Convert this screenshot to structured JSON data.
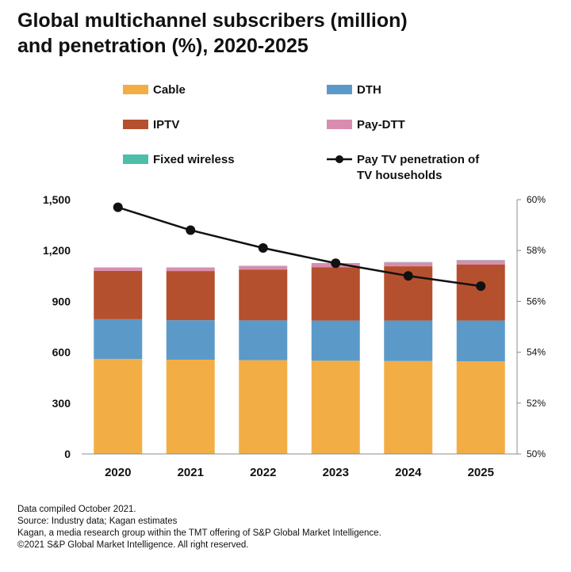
{
  "title_lines": [
    "Global multichannel subscribers (million)",
    "and penetration (%), 2020-2025"
  ],
  "footer": {
    "line1": "Data compiled October 2021.",
    "line2": "Source: Industry data; Kagan estimates",
    "line3": "Kagan, a media research group within the TMT offering of S&P Global Market Intelligence.",
    "line4": "©2021 S&P Global Market Intelligence. All right reserved."
  },
  "chart_data": {
    "type": "bar",
    "stacked": true,
    "title": "Global multichannel subscribers (million) and penetration (%), 2020-2025",
    "categories": [
      "2020",
      "2021",
      "2022",
      "2023",
      "2024",
      "2025"
    ],
    "ylim": [
      0,
      1500
    ],
    "yticks": [
      0,
      300,
      600,
      900,
      1200,
      1500
    ],
    "ytick_labels": [
      "0",
      "300",
      "600",
      "900",
      "1,200",
      "1,500"
    ],
    "y2lim": [
      50,
      60
    ],
    "y2ticks": [
      50,
      52,
      54,
      56,
      58,
      60
    ],
    "y2tick_labels": [
      "50%",
      "52%",
      "54%",
      "56%",
      "58%",
      "60%"
    ],
    "series": [
      {
        "name": "Cable",
        "color": "#F2AE45",
        "values": [
          560,
          556,
          553,
          550,
          548,
          546
        ]
      },
      {
        "name": "DTH",
        "color": "#5B9AC8",
        "values": [
          235,
          233,
          235,
          237,
          239,
          241
        ]
      },
      {
        "name": "IPTV",
        "color": "#B5502F",
        "values": [
          285,
          290,
          300,
          315,
          320,
          330
        ]
      },
      {
        "name": "Pay-DTT",
        "color": "#D98DAE",
        "values": [
          18,
          19,
          20,
          22,
          23,
          25
        ]
      },
      {
        "name": "Fixed wireless",
        "color": "#4DBFA8",
        "values": [
          2,
          2,
          2,
          2,
          2,
          2
        ]
      }
    ],
    "line_series": {
      "name": "Pay TV penetration of TV households",
      "axis": "right",
      "color": "#111111",
      "values": [
        59.7,
        58.8,
        58.1,
        57.5,
        57.0,
        56.6
      ]
    },
    "legend": [
      {
        "label": "Cable",
        "kind": "box",
        "color": "#F2AE45"
      },
      {
        "label": "DTH",
        "kind": "box",
        "color": "#5B9AC8"
      },
      {
        "label": "IPTV",
        "kind": "box",
        "color": "#B5502F"
      },
      {
        "label": "Pay-DTT",
        "kind": "box",
        "color": "#D98DAE"
      },
      {
        "label": "Fixed wireless",
        "kind": "box",
        "color": "#4DBFA8"
      },
      {
        "label_lines": [
          "Pay TV penetration of",
          "TV households"
        ],
        "kind": "line",
        "color": "#111111"
      }
    ]
  }
}
